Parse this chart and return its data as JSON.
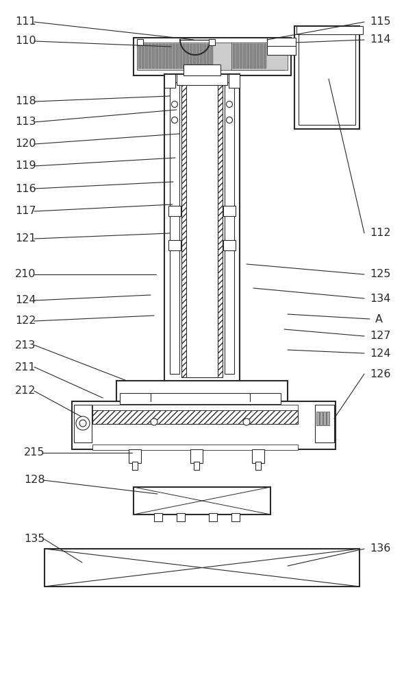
{
  "bg_color": "#ffffff",
  "lc": "#2a2a2a",
  "figsize": [
    5.9,
    10.0
  ],
  "dpi": 100,
  "font_size": 11.5
}
